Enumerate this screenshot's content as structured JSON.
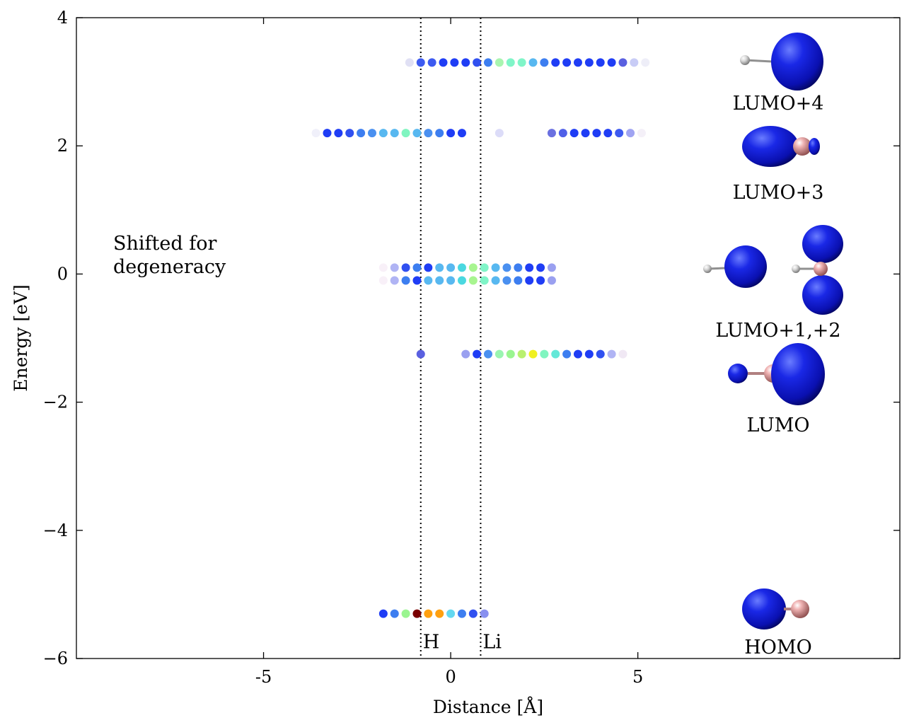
{
  "chart_data": {
    "type": "scatter",
    "xlabel": "Distance [Å]",
    "ylabel": "Energy [eV]",
    "xlim": [
      -10,
      12
    ],
    "ylim": [
      -6,
      4
    ],
    "x_ticks": [
      {
        "value": -5,
        "label": "-5"
      },
      {
        "value": 0,
        "label": "0"
      },
      {
        "value": 5,
        "label": "5"
      }
    ],
    "y_ticks": [
      {
        "value": 4,
        "label": "4"
      },
      {
        "value": 2,
        "label": "2"
      },
      {
        "value": 0,
        "label": "0"
      },
      {
        "value": -2,
        "label": "−2"
      },
      {
        "value": -4,
        "label": "−4"
      },
      {
        "value": -6,
        "label": "−6"
      }
    ],
    "grid": false,
    "atom_lines": [
      {
        "x": -0.8,
        "label": "H"
      },
      {
        "x": 0.8,
        "label": "Li"
      }
    ],
    "annotation": [
      "Shifted for",
      "degeneracy"
    ],
    "levels": [
      {
        "name": "HOMO",
        "energy": -5.3,
        "x_start": -1.8,
        "step": 0.3,
        "colors": [
          "#1f3df5",
          "#3d7ef0",
          "#9af590",
          "#7a0000",
          "#ffa010",
          "#ffa010",
          "#64d8f0",
          "#3d7ef0",
          "#3050f0",
          "#8890f0"
        ]
      },
      {
        "name": "LUMO",
        "energy": -1.25,
        "x_start": -0.8,
        "step": 0.3,
        "colors": [
          "#5a60e0"
        ]
      },
      {
        "name": "LUMO",
        "energy": -1.25,
        "x_start": 0.4,
        "step": 0.3,
        "colors": [
          "#9aa0f0",
          "#1f3df5",
          "#4a90f0",
          "#9af5b0",
          "#9af590",
          "#b8f070",
          "#f0f020",
          "#80f5c0",
          "#64e8d8",
          "#3d7ef0",
          "#1f3df5",
          "#1f3df5",
          "#3050f0",
          "#b0b4f4",
          "#f0e8f4"
        ]
      },
      {
        "name": "LUMO+1",
        "energy": 0.1,
        "x_start": -1.8,
        "step": 0.3,
        "colors": [
          "#f8f0f8",
          "#b0b4f4",
          "#3050f0",
          "#3d7ef0",
          "#1f3df5",
          "#58b8f0",
          "#58b8f0",
          "#4ad8e0",
          "#a8f590",
          "#80f5c8",
          "#58b8f0",
          "#4a90f0",
          "#3d7ef0",
          "#1f3df5",
          "#1f3df5",
          "#9aa0f0"
        ]
      },
      {
        "name": "LUMO+2",
        "energy": -0.1,
        "x_start": -1.8,
        "step": 0.3,
        "colors": [
          "#f8f0f8",
          "#b0b4f4",
          "#3d7ef0",
          "#1f3df5",
          "#58b8f0",
          "#58b8f0",
          "#58b8f0",
          "#4ad8e0",
          "#a8f590",
          "#80f5c8",
          "#58b8f0",
          "#4a90f0",
          "#3d7ef0",
          "#1f3df5",
          "#1f3df5",
          "#9aa0f0"
        ]
      },
      {
        "name": "LUMO+3",
        "energy": 2.2,
        "x_start": -3.6,
        "step": 0.3,
        "colors": [
          "#f0f0fa",
          "#1f3df5",
          "#1f3df5",
          "#3050f0",
          "#3d7ef0",
          "#4a90f0",
          "#58b8f0",
          "#58b8f0",
          "#80f5c0",
          "#58b8f0",
          "#4a90f0",
          "#3d7ef0",
          "#1f3df5",
          "#1f3df5"
        ]
      },
      {
        "name": "LUMO+3",
        "energy": 2.2,
        "x_start": 1.3,
        "step": 0.3,
        "colors": [
          "#dcdcf8"
        ]
      },
      {
        "name": "LUMO+3",
        "energy": 2.2,
        "x_start": 2.7,
        "step": 0.3,
        "colors": [
          "#6a70e0",
          "#5060e8",
          "#1f3df5",
          "#1f3df5",
          "#1f3df5",
          "#1f3df5",
          "#3d5af0",
          "#a0a4f2",
          "#f4f0f8"
        ]
      },
      {
        "name": "LUMO+4",
        "energy": 3.3,
        "x_start": -1.1,
        "step": 0.3,
        "colors": [
          "#e0e0f4",
          "#3d5af0",
          "#3d5af0",
          "#1f3df5",
          "#1f3df5",
          "#1f3df5",
          "#3050f0",
          "#3d7ef0",
          "#a8f5b0",
          "#80f5c8",
          "#80f5c8",
          "#58b8f0",
          "#3d7ef0",
          "#1f3df5",
          "#1f3df5",
          "#1f3df5",
          "#1f3df5",
          "#1f3df5",
          "#1f3df5",
          "#5a60e0",
          "#c8ccf6",
          "#eeeef8"
        ]
      }
    ],
    "orbital_labels": [
      "LUMO+4",
      "LUMO+3",
      "LUMO+1,+2",
      "LUMO",
      "HOMO"
    ]
  },
  "colors": {
    "orbital_blue": "#0a14d8",
    "li_atom": "#e8a0a0",
    "h_atom": "#e8e8e8"
  }
}
